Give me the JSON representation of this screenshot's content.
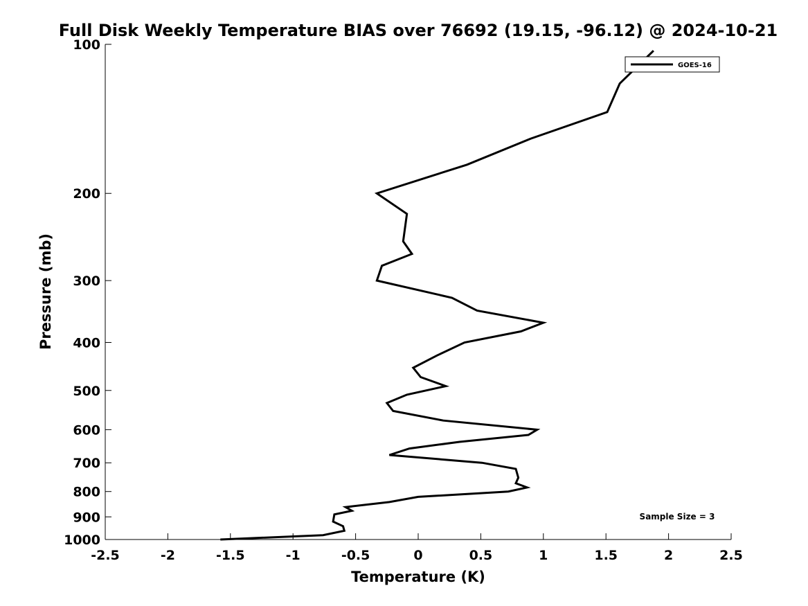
{
  "chart_data": {
    "type": "line",
    "title": "Full Disk Weekly Temperature BIAS over 76692 (19.15, -96.12) @ 2024-10-21",
    "xlabel": "Temperature (K)",
    "ylabel": "Pressure (mb)",
    "xlim": [
      -2.5,
      2.5
    ],
    "ylim": [
      100,
      1000
    ],
    "y_scale": "log",
    "y_reversed": true,
    "x_ticks": [
      "-2.5",
      "-2",
      "-1.5",
      "-1",
      "-0.5",
      "0",
      "0.5",
      "1",
      "1.5",
      "2",
      "2.5"
    ],
    "y_ticks": [
      "100",
      "200",
      "300",
      "400",
      "500",
      "600",
      "700",
      "800",
      "900",
      "1000"
    ],
    "grid": false,
    "legend": "top-right",
    "annotation": "Sample Size = 3",
    "series": [
      {
        "name": "GOES-16",
        "color": "#000000",
        "x": [
          1.88,
          1.61,
          1.51,
          0.9,
          0.39,
          -0.33,
          -0.09,
          -0.12,
          -0.05,
          -0.29,
          -0.33,
          0.27,
          0.47,
          1.0,
          0.82,
          0.37,
          0.15,
          -0.04,
          0.02,
          0.22,
          -0.09,
          -0.25,
          -0.2,
          0.2,
          0.95,
          0.88,
          0.33,
          -0.07,
          -0.23,
          0.51,
          0.78,
          0.8,
          0.78,
          0.87,
          0.72,
          0.0,
          -0.23,
          -0.58,
          -0.53,
          -0.67,
          -0.68,
          -0.6,
          -0.59,
          -0.76,
          -1.58
        ],
        "y": [
          103,
          120,
          137,
          155,
          175,
          200,
          220,
          250,
          265,
          280,
          300,
          325,
          345,
          365,
          380,
          400,
          425,
          450,
          470,
          490,
          510,
          530,
          550,
          575,
          600,
          615,
          635,
          655,
          675,
          700,
          720,
          750,
          770,
          785,
          800,
          820,
          840,
          860,
          875,
          890,
          920,
          940,
          960,
          980,
          1000
        ]
      }
    ]
  }
}
